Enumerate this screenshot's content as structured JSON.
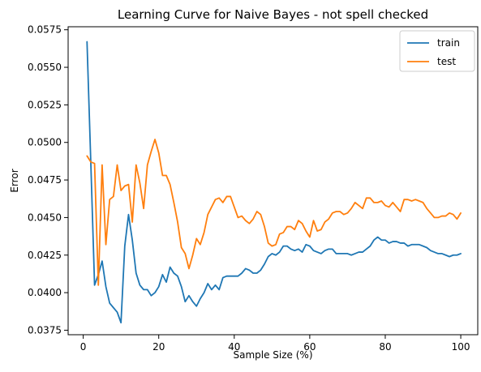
{
  "chart_data": {
    "type": "line",
    "title": "Learning Curve for Naive Bayes - not spell checked",
    "xlabel": "Sample Size (%)",
    "ylabel": "Error",
    "xlim": [
      -4,
      104.5
    ],
    "ylim": [
      0.0372,
      0.0577
    ],
    "x_ticks": [
      0,
      20,
      40,
      60,
      80,
      100
    ],
    "y_ticks": [
      0.0375,
      0.04,
      0.0425,
      0.045,
      0.0475,
      0.05,
      0.0525,
      0.055,
      0.0575
    ],
    "x_tick_labels": [
      "0",
      "20",
      "40",
      "60",
      "80",
      "100"
    ],
    "y_tick_labels": [
      "0.0375",
      "0.0400",
      "0.0425",
      "0.0450",
      "0.0475",
      "0.0500",
      "0.0525",
      "0.0550",
      "0.0575"
    ],
    "grid": false,
    "legend_position": "upper-right",
    "series": [
      {
        "name": "train",
        "color": "#1f77b4",
        "x": [
          1,
          2,
          3,
          4,
          5,
          6,
          7,
          8,
          9,
          10,
          11,
          12,
          13,
          14,
          15,
          16,
          17,
          18,
          19,
          20,
          21,
          22,
          23,
          24,
          25,
          26,
          27,
          28,
          29,
          30,
          31,
          32,
          33,
          34,
          35,
          36,
          37,
          38,
          39,
          40,
          41,
          42,
          43,
          44,
          45,
          46,
          47,
          48,
          49,
          50,
          51,
          52,
          53,
          54,
          55,
          56,
          57,
          58,
          59,
          60,
          61,
          62,
          63,
          64,
          65,
          66,
          67,
          68,
          69,
          70,
          71,
          72,
          73,
          74,
          75,
          76,
          77,
          78,
          79,
          80,
          81,
          82,
          83,
          84,
          85,
          86,
          87,
          88,
          89,
          90,
          91,
          92,
          93,
          94,
          95,
          96,
          97,
          98,
          99,
          100
        ],
        "y": [
          0.0567,
          0.0487,
          0.0405,
          0.0412,
          0.0421,
          0.0404,
          0.0393,
          0.039,
          0.0387,
          0.038,
          0.0431,
          0.0452,
          0.0435,
          0.0413,
          0.0405,
          0.0402,
          0.0402,
          0.0398,
          0.04,
          0.0404,
          0.0412,
          0.0407,
          0.0417,
          0.0413,
          0.0411,
          0.0404,
          0.0394,
          0.0398,
          0.0394,
          0.0391,
          0.0396,
          0.04,
          0.0406,
          0.0402,
          0.0405,
          0.0402,
          0.041,
          0.0411,
          0.0411,
          0.0411,
          0.0411,
          0.0413,
          0.0416,
          0.0415,
          0.0413,
          0.0413,
          0.0415,
          0.0419,
          0.0424,
          0.0426,
          0.0425,
          0.0427,
          0.0431,
          0.0431,
          0.0429,
          0.0428,
          0.0429,
          0.0427,
          0.0432,
          0.0431,
          0.0428,
          0.0427,
          0.0426,
          0.0428,
          0.0429,
          0.0429,
          0.0426,
          0.0426,
          0.0426,
          0.0426,
          0.0425,
          0.0426,
          0.0427,
          0.0427,
          0.0429,
          0.0431,
          0.0435,
          0.0437,
          0.0435,
          0.0435,
          0.0433,
          0.0434,
          0.0434,
          0.0433,
          0.0433,
          0.0431,
          0.0432,
          0.0432,
          0.0432,
          0.0431,
          0.043,
          0.0428,
          0.0427,
          0.0426,
          0.0426,
          0.0425,
          0.0424,
          0.0425,
          0.0425,
          0.0426
        ]
      },
      {
        "name": "test",
        "color": "#ff7f0e",
        "x": [
          1,
          2,
          3,
          4,
          5,
          6,
          7,
          8,
          9,
          10,
          11,
          12,
          13,
          14,
          15,
          16,
          17,
          18,
          19,
          20,
          21,
          22,
          23,
          24,
          25,
          26,
          27,
          28,
          29,
          30,
          31,
          32,
          33,
          34,
          35,
          36,
          37,
          38,
          39,
          40,
          41,
          42,
          43,
          44,
          45,
          46,
          47,
          48,
          49,
          50,
          51,
          52,
          53,
          54,
          55,
          56,
          57,
          58,
          59,
          60,
          61,
          62,
          63,
          64,
          65,
          66,
          67,
          68,
          69,
          70,
          71,
          72,
          73,
          74,
          75,
          76,
          77,
          78,
          79,
          80,
          81,
          82,
          83,
          84,
          85,
          86,
          87,
          88,
          89,
          90,
          91,
          92,
          93,
          94,
          95,
          96,
          97,
          98,
          99,
          100
        ],
        "y": [
          0.0491,
          0.0487,
          0.0486,
          0.0405,
          0.0485,
          0.0432,
          0.0462,
          0.0464,
          0.0485,
          0.0468,
          0.0471,
          0.0472,
          0.0447,
          0.0485,
          0.0473,
          0.0456,
          0.0485,
          0.0494,
          0.0502,
          0.0493,
          0.0478,
          0.0478,
          0.0472,
          0.046,
          0.0447,
          0.043,
          0.0426,
          0.0416,
          0.0425,
          0.0436,
          0.0432,
          0.044,
          0.0452,
          0.0457,
          0.0462,
          0.0463,
          0.046,
          0.0464,
          0.0464,
          0.0457,
          0.045,
          0.0451,
          0.0448,
          0.0446,
          0.0449,
          0.0454,
          0.0452,
          0.0444,
          0.0433,
          0.0431,
          0.0432,
          0.0439,
          0.044,
          0.0444,
          0.0444,
          0.0442,
          0.0448,
          0.0446,
          0.0441,
          0.0437,
          0.0448,
          0.0441,
          0.0442,
          0.0447,
          0.0449,
          0.0453,
          0.0454,
          0.0454,
          0.0452,
          0.0453,
          0.0456,
          0.046,
          0.0458,
          0.0456,
          0.0463,
          0.0463,
          0.046,
          0.046,
          0.0461,
          0.0458,
          0.0457,
          0.046,
          0.0457,
          0.0454,
          0.0462,
          0.0462,
          0.0461,
          0.0462,
          0.0461,
          0.046,
          0.0456,
          0.0453,
          0.045,
          0.045,
          0.0451,
          0.0451,
          0.0453,
          0.0452,
          0.0449,
          0.0453
        ]
      }
    ]
  }
}
